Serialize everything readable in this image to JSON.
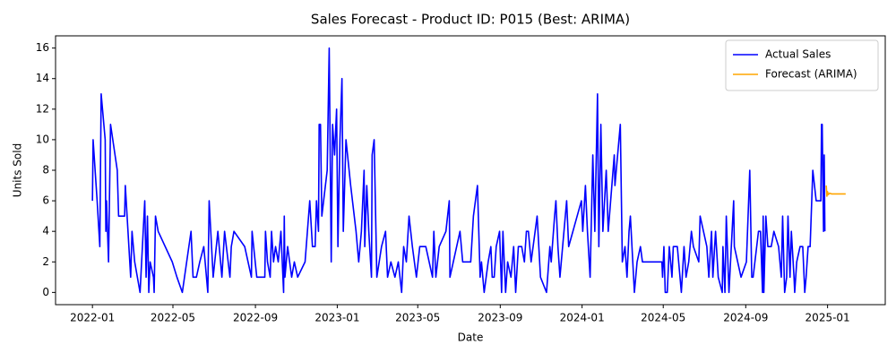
{
  "chart_data": {
    "type": "line",
    "title": "Sales Forecast - Product ID: P015 (Best: ARIMA)",
    "x_label": "Date",
    "y_label": "Units Sold",
    "xlim": [
      "2021-11-07",
      "2025-03-28"
    ],
    "xticks": [
      {
        "value": "2022-01-01",
        "label": "2022-01"
      },
      {
        "value": "2022-05-01",
        "label": "2022-05"
      },
      {
        "value": "2022-09-01",
        "label": "2022-09"
      },
      {
        "value": "2023-01-01",
        "label": "2023-01"
      },
      {
        "value": "2023-05-01",
        "label": "2023-05"
      },
      {
        "value": "2023-09-01",
        "label": "2023-09"
      },
      {
        "value": "2024-01-01",
        "label": "2024-01"
      },
      {
        "value": "2024-05-01",
        "label": "2024-05"
      },
      {
        "value": "2024-09-01",
        "label": "2024-09"
      },
      {
        "value": "2025-01-01",
        "label": "2025-01"
      }
    ],
    "ylim": [
      -0.8,
      16.8
    ],
    "yticks": [
      0,
      2,
      4,
      6,
      8,
      10,
      12,
      14,
      16
    ],
    "grid": false,
    "legend": "upper right",
    "series": [
      {
        "name": "Actual Sales",
        "color": "#0000ff",
        "x": [
          "2022-01-01",
          "2022-01-02",
          "2022-01-08",
          "2022-01-12",
          "2022-01-14",
          "2022-01-20",
          "2022-01-21",
          "2022-01-22",
          "2022-01-25",
          "2022-01-28",
          "2022-02-07",
          "2022-02-09",
          "2022-02-18",
          "2022-02-19",
          "2022-02-27",
          "2022-03-01",
          "2022-03-05",
          "2022-03-13",
          "2022-03-20",
          "2022-03-22",
          "2022-03-24",
          "2022-03-26",
          "2022-03-28",
          "2022-04-02",
          "2022-04-03",
          "2022-04-05",
          "2022-04-09",
          "2022-04-30",
          "2022-05-07",
          "2022-05-15",
          "2022-05-28",
          "2022-05-29",
          "2022-05-31",
          "2022-06-05",
          "2022-06-10",
          "2022-06-16",
          "2022-06-22",
          "2022-06-24",
          "2022-06-30",
          "2022-07-07",
          "2022-07-13",
          "2022-07-17",
          "2022-07-25",
          "2022-07-27",
          "2022-07-31",
          "2022-08-16",
          "2022-08-26",
          "2022-08-27",
          "2022-09-03",
          "2022-09-15",
          "2022-09-16",
          "2022-09-19",
          "2022-09-23",
          "2022-09-25",
          "2022-09-28",
          "2022-10-01",
          "2022-10-05",
          "2022-10-09",
          "2022-10-13",
          "2022-10-14",
          "2022-10-15",
          "2022-10-19",
          "2022-10-25",
          "2022-10-29",
          "2022-11-03",
          "2022-11-14",
          "2022-11-21",
          "2022-11-25",
          "2022-11-29",
          "2022-12-01",
          "2022-12-04",
          "2022-12-05",
          "2022-12-07",
          "2022-12-09",
          "2022-12-17",
          "2022-12-20",
          "2022-12-23",
          "2022-12-25",
          "2022-12-28",
          "2022-12-31",
          "2023-01-02",
          "2023-01-05",
          "2023-01-08",
          "2023-01-10",
          "2023-01-14",
          "2023-01-21",
          "2023-01-29",
          "2023-02-02",
          "2023-02-06",
          "2023-02-07",
          "2023-02-10",
          "2023-02-11",
          "2023-02-14",
          "2023-02-17",
          "2023-02-21",
          "2023-02-22",
          "2023-02-25",
          "2023-03-01",
          "2023-03-08",
          "2023-03-14",
          "2023-03-17",
          "2023-03-22",
          "2023-03-28",
          "2023-04-02",
          "2023-04-07",
          "2023-04-10",
          "2023-04-14",
          "2023-04-18",
          "2023-04-23",
          "2023-04-29",
          "2023-05-04",
          "2023-05-13",
          "2023-05-23",
          "2023-05-25",
          "2023-05-28",
          "2023-06-02",
          "2023-06-12",
          "2023-06-17",
          "2023-06-18",
          "2023-07-03",
          "2023-07-07",
          "2023-07-19",
          "2023-07-23",
          "2023-07-29",
          "2023-08-02",
          "2023-08-04",
          "2023-08-08",
          "2023-08-14",
          "2023-08-18",
          "2023-08-20",
          "2023-08-23",
          "2023-08-26",
          "2023-08-31",
          "2023-09-03",
          "2023-09-05",
          "2023-09-09",
          "2023-09-12",
          "2023-09-17",
          "2023-09-21",
          "2023-09-24",
          "2023-09-28",
          "2023-10-03",
          "2023-10-07",
          "2023-10-10",
          "2023-10-13",
          "2023-10-17",
          "2023-10-26",
          "2023-10-31",
          "2023-11-09",
          "2023-11-14",
          "2023-11-16",
          "2023-11-21",
          "2023-11-23",
          "2023-11-26",
          "2023-11-29",
          "2023-12-09",
          "2023-12-12",
          "2023-12-31",
          "2024-01-02",
          "2024-01-06",
          "2024-01-09",
          "2024-01-13",
          "2024-01-17",
          "2024-01-20",
          "2024-01-24",
          "2024-01-26",
          "2024-01-29",
          "2024-02-01",
          "2024-02-06",
          "2024-02-09",
          "2024-02-18",
          "2024-02-19",
          "2024-02-27",
          "2024-03-01",
          "2024-03-05",
          "2024-03-08",
          "2024-03-11",
          "2024-03-13",
          "2024-03-19",
          "2024-03-23",
          "2024-03-28",
          "2024-03-31",
          "2024-04-29",
          "2024-04-30",
          "2024-05-02",
          "2024-05-04",
          "2024-05-07",
          "2024-05-10",
          "2024-05-14",
          "2024-05-16",
          "2024-05-22",
          "2024-05-24",
          "2024-05-28",
          "2024-06-01",
          "2024-06-04",
          "2024-06-08",
          "2024-06-12",
          "2024-06-15",
          "2024-06-23",
          "2024-06-25",
          "2024-07-05",
          "2024-07-08",
          "2024-07-12",
          "2024-07-14",
          "2024-07-18",
          "2024-07-22",
          "2024-07-28",
          "2024-07-29",
          "2024-08-01",
          "2024-08-03",
          "2024-08-07",
          "2024-08-14",
          "2024-08-15",
          "2024-08-25",
          "2024-09-02",
          "2024-09-07",
          "2024-09-10",
          "2024-09-12",
          "2024-09-20",
          "2024-09-23",
          "2024-09-26",
          "2024-09-27",
          "2024-09-28",
          "2024-10-01",
          "2024-10-04",
          "2024-10-09",
          "2024-10-13",
          "2024-10-20",
          "2024-10-24",
          "2024-10-26",
          "2024-10-29",
          "2024-11-01",
          "2024-11-03",
          "2024-11-06",
          "2024-11-08",
          "2024-11-12",
          "2024-11-13",
          "2024-11-16",
          "2024-11-21",
          "2024-11-25",
          "2024-11-28",
          "2024-11-30",
          "2024-12-03",
          "2024-12-06",
          "2024-12-10",
          "2024-12-15",
          "2024-12-22",
          "2024-12-23",
          "2024-12-24",
          "2024-12-26",
          "2024-12-27",
          "2024-12-28"
        ],
        "values": [
          6,
          10,
          6,
          3,
          13,
          10,
          4,
          6,
          2,
          11,
          8,
          5,
          5,
          7,
          1,
          4,
          2,
          0,
          6,
          1,
          5,
          0,
          2,
          1,
          0,
          5,
          4,
          2,
          1,
          0,
          4,
          3,
          1,
          1,
          2,
          3,
          0,
          6,
          1,
          4,
          1,
          4,
          1,
          3,
          4,
          3,
          1,
          4,
          1,
          1,
          4,
          2,
          1,
          4,
          2,
          3,
          2,
          4,
          0,
          5,
          1,
          3,
          1,
          2,
          1,
          2,
          6,
          3,
          3,
          6,
          4,
          11,
          11,
          5,
          8,
          16,
          2,
          11,
          9,
          12,
          3,
          10,
          14,
          4,
          10,
          7,
          4,
          2,
          4,
          5,
          8,
          3,
          7,
          4,
          1,
          9,
          10,
          1,
          3,
          4,
          1,
          2,
          1,
          2,
          0,
          3,
          2,
          5,
          3,
          1,
          3,
          3,
          1,
          4,
          1,
          3,
          4,
          6,
          1,
          4,
          2,
          2,
          5,
          7,
          1,
          2,
          0,
          2,
          3,
          1,
          1,
          3,
          4,
          0,
          4,
          0,
          2,
          1,
          3,
          0,
          3,
          3,
          2,
          4,
          4,
          2,
          5,
          1,
          0,
          3,
          2,
          5,
          6,
          3,
          1,
          6,
          3,
          6,
          4,
          7,
          4,
          1,
          9,
          4,
          13,
          3,
          11,
          4,
          8,
          4,
          9,
          7,
          11,
          2,
          3,
          1,
          4,
          5,
          0,
          2,
          3,
          2,
          2,
          1,
          3,
          0,
          0,
          3,
          1,
          3,
          3,
          2,
          0,
          3,
          1,
          2,
          4,
          3,
          2,
          5,
          3,
          1,
          4,
          1,
          4,
          1,
          0,
          3,
          0,
          5,
          0,
          6,
          3,
          1,
          2,
          8,
          1,
          1,
          4,
          4,
          0,
          5,
          0,
          5,
          3,
          3,
          4,
          3,
          1,
          5,
          0,
          1,
          5,
          1,
          4,
          1,
          0,
          2,
          3,
          3,
          0,
          1,
          3,
          3,
          8,
          6,
          6,
          11,
          11,
          4,
          9,
          4
        ]
      },
      {
        "name": "Forecast (ARIMA)",
        "color": "#ffa500",
        "x": [
          "2024-12-30",
          "2024-12-31",
          "2025-01-01",
          "2025-01-02",
          "2025-01-04",
          "2025-01-07",
          "2025-01-28"
        ],
        "values": [
          7.0,
          6.3,
          6.6,
          6.4,
          6.5,
          6.45,
          6.45
        ]
      }
    ]
  }
}
